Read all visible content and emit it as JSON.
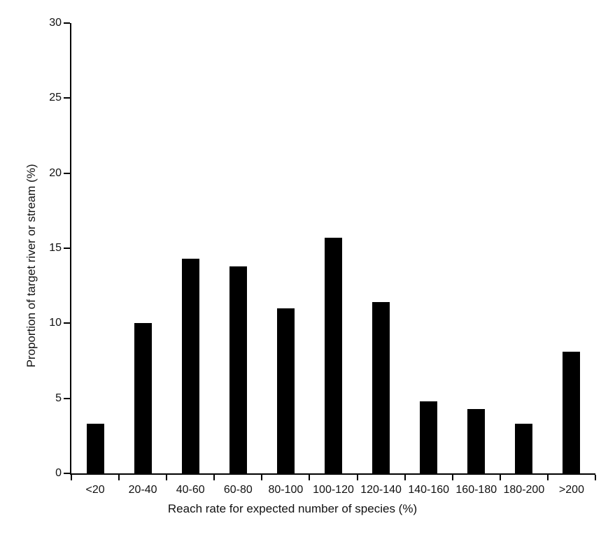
{
  "chart_data": {
    "type": "bar",
    "title": "",
    "xlabel": "Reach rate for expected number of species (%)",
    "ylabel": "Proportion of target river or stream (%)",
    "categories": [
      "<20",
      "20-40",
      "40-60",
      "60-80",
      "80-100",
      "100-120",
      "120-140",
      "140-160",
      "160-180",
      "180-200",
      ">200"
    ],
    "values": [
      3.3,
      10.0,
      14.3,
      13.8,
      11.0,
      15.7,
      11.4,
      4.8,
      4.3,
      3.3,
      8.1
    ],
    "ylim": [
      0,
      30
    ],
    "yticks": [
      0,
      5,
      10,
      15,
      20,
      25,
      30
    ],
    "bar_color": "#000000",
    "axis_color": "#000000",
    "text_color": "#111111",
    "background": "#ffffff",
    "grid": false,
    "legend": null
  }
}
